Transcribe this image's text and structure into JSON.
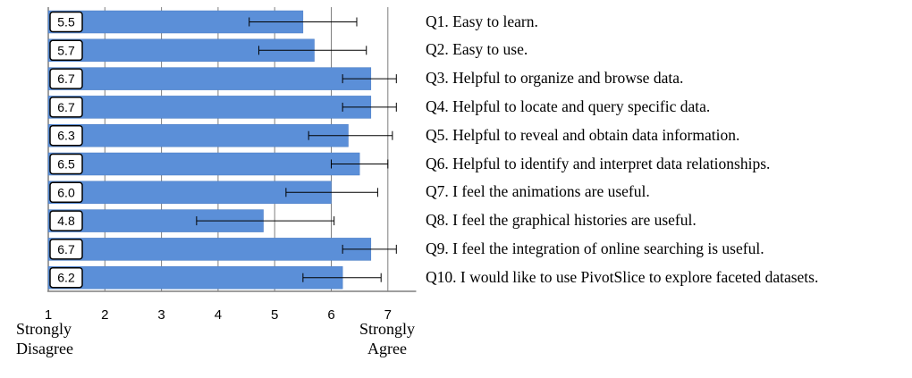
{
  "chart_data": {
    "type": "bar",
    "orientation": "horizontal",
    "categories": [
      "Q1. Easy to learn.",
      "Q2. Easy to use.",
      "Q3. Helpful to organize and browse data.",
      "Q4. Helpful to locate and query specific data.",
      "Q5. Helpful to reveal and obtain data information.",
      "Q6. Helpful to identify and interpret data relationships.",
      "Q7. I feel the animations are useful.",
      "Q8. I feel the graphical histories are useful.",
      "Q9. I feel the integration of online searching is useful.",
      "Q10. I would like to use PivotSlice to explore faceted datasets."
    ],
    "values": [
      5.5,
      5.7,
      6.7,
      6.7,
      6.3,
      6.5,
      6.0,
      4.8,
      6.7,
      6.2
    ],
    "value_labels": [
      "5.5",
      "5.7",
      "6.7",
      "6.7",
      "6.3",
      "6.5",
      "6.0",
      "4.8",
      "6.7",
      "6.2"
    ],
    "error_low": [
      4.55,
      4.72,
      6.2,
      6.2,
      5.6,
      6.0,
      5.2,
      3.62,
      6.2,
      5.5
    ],
    "error_high": [
      6.45,
      6.62,
      7.15,
      7.15,
      7.08,
      7.0,
      6.82,
      6.05,
      7.15,
      6.88
    ],
    "xlim": [
      1,
      7.5
    ],
    "x_ticks": [
      "1",
      "2",
      "3",
      "4",
      "5",
      "6",
      "7"
    ],
    "x_end_labels": {
      "left": [
        "Strongly",
        "Disagree"
      ],
      "right": [
        "Strongly",
        "Agree"
      ]
    },
    "grid": true,
    "colors": {
      "bar": "#5b8fd8",
      "bar_stroke": "#4a7cc4",
      "grid": "#7f7f7f",
      "error": "#000000"
    }
  }
}
